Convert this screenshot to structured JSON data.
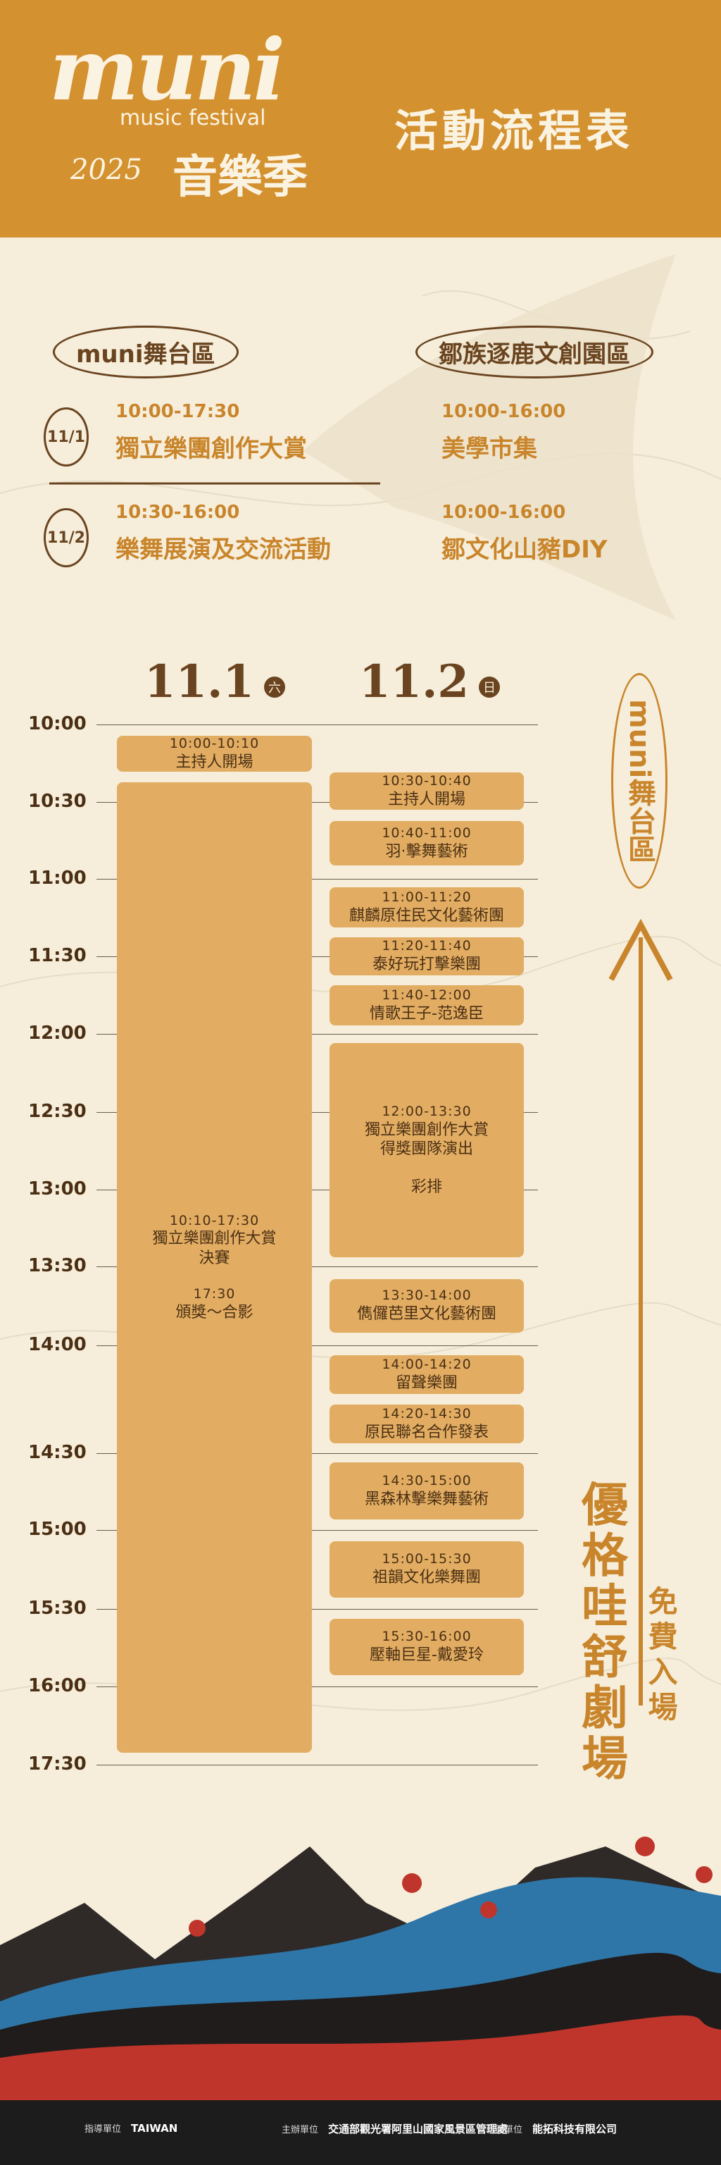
{
  "header": {
    "logo": "muni",
    "subtitle": "music festival",
    "year": "2025",
    "festival": "音樂季",
    "title": "活動流程表"
  },
  "venues": {
    "stage": "muni舞台區",
    "park": "鄒族逐鹿文創園區"
  },
  "overview": [
    {
      "date": "11/1",
      "stage_time": "10:00-17:30",
      "stage_event": "獨立樂團創作大賞",
      "park_time": "10:00-16:00",
      "park_event": "美學市集"
    },
    {
      "date": "11/2",
      "stage_time": "10:30-16:00",
      "stage_event": "樂舞展演及交流活動",
      "park_time": "10:00-16:00",
      "park_event": "鄒文化山豬DIY"
    }
  ],
  "schedule": {
    "times": [
      "10:00",
      "10:30",
      "11:00",
      "11:30",
      "12:00",
      "12:30",
      "13:00",
      "13:30",
      "14:00",
      "14:30",
      "15:00",
      "15:30",
      "16:00",
      "17:30"
    ],
    "days": [
      {
        "date": "11.1",
        "weekday": "六",
        "events": [
          {
            "time": "10:00-10:10",
            "lines": [
              "主持人開場"
            ]
          },
          {
            "time": "10:10-17:30",
            "lines": [
              "獨立樂團創作大賞",
              "決賽"
            ],
            "note_time": "17:30",
            "note": "頒獎～合影"
          }
        ]
      },
      {
        "date": "11.2",
        "weekday": "日",
        "events": [
          {
            "time": "10:30-10:40",
            "lines": [
              "主持人開場"
            ]
          },
          {
            "time": "10:40-11:00",
            "lines": [
              "羽·擊舞藝術"
            ]
          },
          {
            "time": "11:00-11:20",
            "lines": [
              "麒麟原住民文化藝術團"
            ]
          },
          {
            "time": "11:20-11:40",
            "lines": [
              "泰好玩打擊樂團"
            ]
          },
          {
            "time": "11:40-12:00",
            "lines": [
              "情歌王子-范逸臣"
            ]
          },
          {
            "time": "12:00-13:30",
            "lines": [
              "獨立樂團創作大賞",
              "得獎團隊演出"
            ],
            "note": "彩排"
          },
          {
            "time": "13:30-14:00",
            "lines": [
              "儁儸芭里文化藝術團"
            ]
          },
          {
            "time": "14:00-14:20",
            "lines": [
              "留聲樂團"
            ]
          },
          {
            "time": "14:20-14:30",
            "lines": [
              "原民聯名合作發表"
            ]
          },
          {
            "time": "14:30-15:00",
            "lines": [
              "黑森林擊樂舞藝術"
            ]
          },
          {
            "time": "15:00-15:30",
            "lines": [
              "祖韻文化樂舞團"
            ]
          },
          {
            "time": "15:30-16:00",
            "lines": [
              "壓軸巨星-戴愛玲"
            ]
          }
        ]
      }
    ]
  },
  "side": {
    "stage": "muni舞台區",
    "venue": "優格哇舒劇場",
    "admission": "免費入場"
  },
  "footer": [
    {
      "label": "指導單位",
      "org": "TAIWAN"
    },
    {
      "label": "主辦單位",
      "org": "交通部觀光署阿里山國家風景區管理處"
    },
    {
      "label": "執行單位",
      "org": "能拓科技有限公司"
    }
  ]
}
